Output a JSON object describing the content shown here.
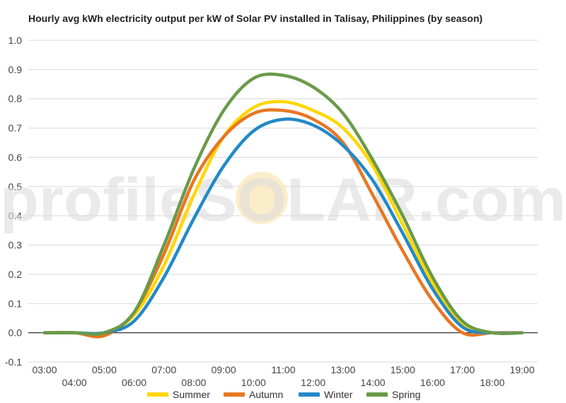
{
  "chart_data": {
    "type": "line",
    "title": "Hourly avg kWh electricity output per kW of Solar PV installed in Talisay, Philippines (by season)",
    "watermark": "profileSOLAR.com",
    "xlabel": "",
    "ylabel": "",
    "ylim": [
      -0.1,
      1.0
    ],
    "yticks": [
      "-0.1",
      "0.0",
      "0.1",
      "0.2",
      "0.3",
      "0.4",
      "0.5",
      "0.6",
      "0.7",
      "0.8",
      "0.9",
      "1.0"
    ],
    "categories": [
      "03:00",
      "04:00",
      "05:00",
      "06:00",
      "07:00",
      "08:00",
      "09:00",
      "10:00",
      "11:00",
      "12:00",
      "13:00",
      "14:00",
      "15:00",
      "16:00",
      "17:00",
      "18:00",
      "19:00"
    ],
    "grid": true,
    "legend_position": "bottom",
    "series": [
      {
        "name": "Summer",
        "color": "#ffd700",
        "values": [
          0.0,
          0.0,
          0.0,
          0.06,
          0.23,
          0.47,
          0.67,
          0.77,
          0.79,
          0.76,
          0.7,
          0.57,
          0.37,
          0.17,
          0.03,
          0.0,
          0.0
        ]
      },
      {
        "name": "Autumn",
        "color": "#e87722",
        "values": [
          0.0,
          0.0,
          -0.01,
          0.07,
          0.27,
          0.52,
          0.67,
          0.75,
          0.76,
          0.73,
          0.65,
          0.47,
          0.28,
          0.11,
          0.0,
          0.0,
          0.0
        ]
      },
      {
        "name": "Winter",
        "color": "#2389c7",
        "values": [
          0.0,
          0.0,
          0.0,
          0.04,
          0.19,
          0.39,
          0.57,
          0.69,
          0.73,
          0.71,
          0.64,
          0.52,
          0.34,
          0.15,
          0.02,
          0.0,
          0.0
        ]
      },
      {
        "name": "Spring",
        "color": "#6a9a4a",
        "values": [
          0.0,
          0.0,
          0.0,
          0.07,
          0.3,
          0.56,
          0.76,
          0.87,
          0.88,
          0.84,
          0.75,
          0.59,
          0.4,
          0.19,
          0.04,
          0.0,
          0.0
        ]
      }
    ]
  }
}
